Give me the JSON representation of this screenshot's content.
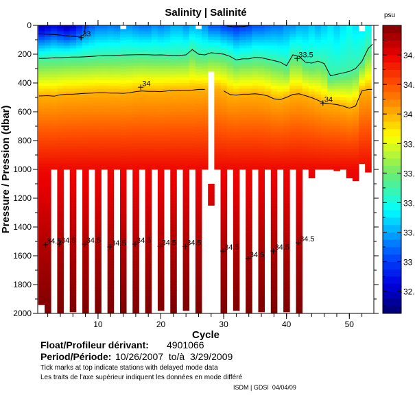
{
  "chart_data": {
    "type": "heatmap",
    "title": "Salinity | Salinité",
    "xlabel": "Cycle",
    "ylabel": "Pressure / Pression (dbar)",
    "xlim": [
      0.4,
      53.9
    ],
    "ylim": [
      2000,
      0
    ],
    "xticks": [
      10,
      20,
      30,
      40,
      50
    ],
    "yticks": [
      0,
      200,
      400,
      600,
      800,
      1000,
      1200,
      1400,
      1600,
      1800,
      2000
    ],
    "colorbar": {
      "label": "psu",
      "range": [
        32.65,
        34.6
      ],
      "ticks": [
        "32.8",
        "33",
        "33.2",
        "33.4",
        "33.6",
        "33.8",
        "34",
        "34.2",
        "34.4"
      ]
    },
    "cycles": {
      "surface_salinity": [
        32.75,
        32.8,
        32.85,
        32.8,
        32.75,
        32.8,
        32.9,
        33.0,
        33.05,
        33.1,
        33.1,
        33.12,
        33.1,
        33.15,
        33.15,
        33.12,
        33.1,
        33.1,
        33.15,
        33.12,
        33.15,
        33.2,
        33.2,
        33.15,
        33.2,
        33.2,
        33.15,
        33.05,
        33.05,
        33.0,
        32.98,
        32.95,
        32.98,
        33.0,
        33.05,
        33.05,
        33.08,
        33.1,
        33.1,
        33.15,
        33.15,
        33.2,
        33.2,
        33.25,
        33.2,
        33.25,
        33.3,
        33.25,
        33.3,
        33.35,
        33.3,
        33.3,
        33.35
      ],
      "isohaline_33_5_dbar": [
        230,
        228,
        225,
        225,
        222,
        220,
        220,
        218,
        215,
        212,
        210,
        210,
        208,
        206,
        205,
        204,
        203,
        204,
        206,
        205,
        207,
        210,
        208,
        205,
        168,
        200,
        205,
        190,
        195,
        200,
        215,
        240,
        232,
        232,
        222,
        225,
        235,
        245,
        255,
        280,
        205,
        215,
        255,
        262,
        248,
        265,
        350,
        340,
        330,
        320,
        300,
        250,
        160
      ],
      "isohaline_34_dbar": [
        490,
        488,
        492,
        482,
        478,
        478,
        475,
        472,
        470,
        468,
        468,
        470,
        470,
        472,
        468,
        460,
        455,
        458,
        458,
        460,
        455,
        452,
        450,
        452,
        450,
        445,
        445,
        440,
        440,
        455,
        480,
        485,
        478,
        478,
        475,
        480,
        490,
        510,
        515,
        500,
        480,
        475,
        488,
        502,
        520,
        540,
        545,
        550,
        560,
        575,
        560,
        455,
        445
      ],
      "max_pressure_dbar": [
        1940,
        2000,
        1000,
        2000,
        1000,
        1990,
        1000,
        2000,
        1000,
        2000,
        1000,
        2000,
        1000,
        2000,
        1000,
        2000,
        1000,
        2000,
        1000,
        1980,
        1000,
        2000,
        1000,
        1980,
        1000,
        2000,
        1000,
        320,
        1000,
        2000,
        1000,
        1980,
        1000,
        2000,
        1000,
        1990,
        1000,
        2000,
        1000,
        1990,
        1000,
        2000,
        1000,
        1060,
        1000,
        1000,
        1000,
        1010,
        1000,
        1060,
        1080,
        960,
        1020
      ],
      "min_pressure_dbar": {
        "14": 25,
        "26": 25,
        "52": 40
      },
      "extra_segments": [
        {
          "cycle": 28,
          "from": 1100,
          "to": 1250
        }
      ]
    },
    "contours": [
      {
        "level": "33",
        "points": [
          [
            0.5,
            60
          ],
          [
            2,
            62
          ],
          [
            3.5,
            65
          ],
          [
            5,
            72
          ],
          [
            6.5,
            78
          ],
          [
            7.2,
            80
          ],
          [
            7.8,
            60
          ],
          [
            8,
            0
          ]
        ]
      },
      {
        "level": "33",
        "points": [
          [
            30.5,
            4
          ],
          [
            31.5,
            10
          ],
          [
            33,
            8
          ],
          [
            34.5,
            0
          ]
        ]
      }
    ],
    "labels": [
      {
        "text": "33",
        "cycle": 7.3,
        "pressure": 85
      },
      {
        "text": "33.5",
        "cycle": 41.7,
        "pressure": 230
      },
      {
        "text": "34",
        "cycle": 16.8,
        "pressure": 430
      },
      {
        "text": "34",
        "cycle": 45.8,
        "pressure": 540
      },
      {
        "text": "34.5",
        "cycle": 1.6,
        "pressure": 1524
      },
      {
        "text": "34.5",
        "cycle": 3.9,
        "pressure": 1519
      },
      {
        "text": "34.5",
        "cycle": 7.9,
        "pressure": 1519
      },
      {
        "text": "34.5",
        "cycle": 11.9,
        "pressure": 1538
      },
      {
        "text": "34.5",
        "cycle": 15.9,
        "pressure": 1519
      },
      {
        "text": "34.5",
        "cycle": 19.9,
        "pressure": 1535
      },
      {
        "text": "34.5",
        "cycle": 23.9,
        "pressure": 1535
      },
      {
        "text": "34.5",
        "cycle": 29.9,
        "pressure": 1567
      },
      {
        "text": "34.5",
        "cycle": 33.9,
        "pressure": 1619
      },
      {
        "text": "34.5",
        "cycle": 37.9,
        "pressure": 1567
      },
      {
        "text": "34.5",
        "cycle": 41.9,
        "pressure": 1510
      }
    ]
  },
  "info": {
    "float_label": "Float/Profileur dérivant:",
    "float_id": "4901066",
    "period_label": "Period/Période:",
    "period_value": "10/26/2007  to/à  3/29/2009",
    "note_en": "Tick marks at top indicate stations with delayed mode data",
    "note_fr": "Les traits de l'axe supérieur indiquent les données en mode différé",
    "credit": "ISDM | GDSI  04/04/09"
  }
}
